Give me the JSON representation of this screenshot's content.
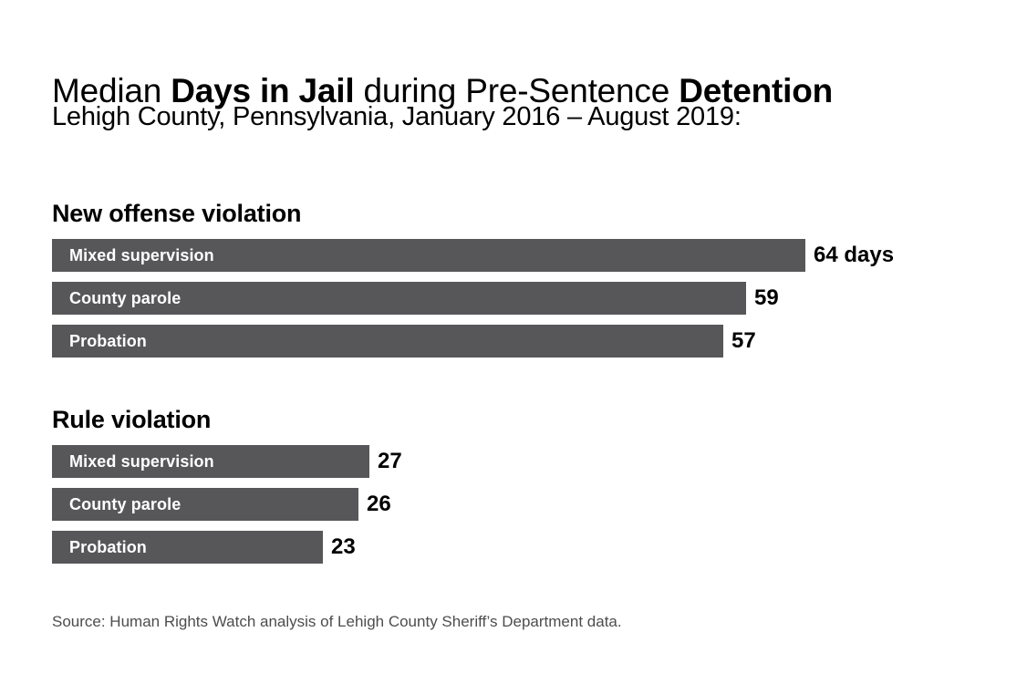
{
  "title": {
    "parts": [
      {
        "text": "Median ",
        "bold": false
      },
      {
        "text": "Days in Jail",
        "bold": true
      },
      {
        "text": " during Pre-Sentence ",
        "bold": false
      },
      {
        "text": "Detention",
        "bold": true
      }
    ],
    "plain": "Median Days in Jail during Pre-Sentence Detention"
  },
  "subtitle": "Lehigh County, Pennsylvania, January 2016 – August 2019:",
  "source": "Source: Human Rights Watch analysis of Lehigh County Sheriff’s Department data.",
  "colors": {
    "background": "#ffffff",
    "bar": "#57575a",
    "bar_label_text": "#ffffff",
    "value_text": "#000000",
    "title_text": "#000000",
    "source_text": "#4d4d4d"
  },
  "chart_data": {
    "type": "bar",
    "orientation": "horizontal",
    "title": "Median Days in Jail during Pre-Sentence Detention",
    "subtitle": "Lehigh County, Pennsylvania, January 2016 – August 2019:",
    "unit": "days",
    "xlim": [
      0,
      64
    ],
    "grid": false,
    "legend": false,
    "axes_shown": false,
    "categories": [
      "Mixed supervision",
      "County parole",
      "Probation"
    ],
    "groups": [
      {
        "label": "New offense violation",
        "bars": [
          {
            "category": "Mixed supervision",
            "value": 64,
            "value_label": "64 days"
          },
          {
            "category": "County parole",
            "value": 59,
            "value_label": "59"
          },
          {
            "category": "Probation",
            "value": 57,
            "value_label": "57"
          }
        ]
      },
      {
        "label": "Rule violation",
        "bars": [
          {
            "category": "Mixed supervision",
            "value": 27,
            "value_label": "27"
          },
          {
            "category": "County parole",
            "value": 26,
            "value_label": "26"
          },
          {
            "category": "Probation",
            "value": 23,
            "value_label": "23"
          }
        ]
      }
    ],
    "source": "Source: Human Rights Watch analysis of Lehigh County Sheriff’s Department data."
  }
}
